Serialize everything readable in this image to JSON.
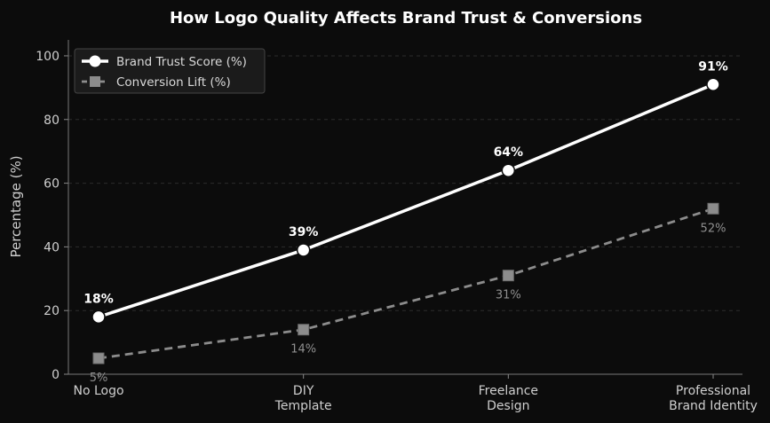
{
  "chart_data": {
    "type": "line",
    "title": "How Logo Quality Affects Brand Trust & Conversions",
    "xlabel": "",
    "ylabel": "Percentage (%)",
    "ylim": [
      0,
      105
    ],
    "yticks": [
      0,
      20,
      40,
      60,
      80,
      100
    ],
    "categories": [
      [
        "No Logo"
      ],
      [
        "DIY",
        "Template"
      ],
      [
        "Freelance",
        "Design"
      ],
      [
        "Professional",
        "Brand Identity"
      ]
    ],
    "series": [
      {
        "name": "Brand Trust Score (%)",
        "values": [
          18,
          39,
          64,
          91
        ],
        "labels": [
          "18%",
          "39%",
          "64%",
          "91%"
        ],
        "color": "#ffffff",
        "style": "solid",
        "marker": "circle"
      },
      {
        "name": "Conversion Lift (%)",
        "values": [
          5,
          14,
          31,
          52
        ],
        "labels": [
          "5%",
          "14%",
          "31%",
          "52%"
        ],
        "color": "#8c8c8c",
        "style": "dashed",
        "marker": "square"
      }
    ],
    "grid": true,
    "legend_position": "top-left"
  }
}
